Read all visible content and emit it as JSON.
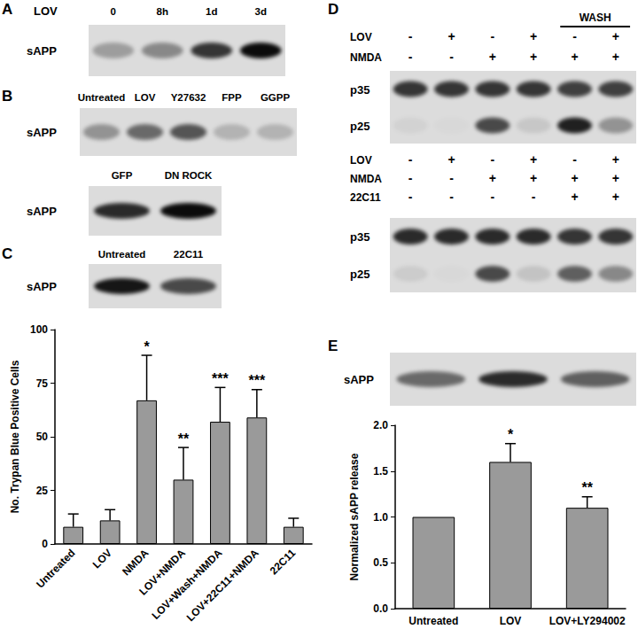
{
  "chart_data": [
    {
      "type": "bar",
      "categories": [
        "Untreated",
        "LOV",
        "NMDA",
        "LOV+NMDA",
        "LOV+Wash+NMDA",
        "LOV+22C11+NMDA",
        "22C11"
      ],
      "values": [
        8,
        11,
        67,
        30,
        57,
        59,
        8
      ],
      "errors": [
        6,
        5,
        21,
        15,
        16,
        13,
        4
      ],
      "annotations": [
        {
          "category": "NMDA",
          "text": "*"
        },
        {
          "category": "LOV+NMDA",
          "text": "**"
        },
        {
          "category": "LOV+Wash+NMDA",
          "text": "***"
        },
        {
          "category": "LOV+22C11+NMDA",
          "text": "***"
        }
      ],
      "y_label": "No. Trypan Blue Positive Cells",
      "color": "#9a9a9a",
      "ylim": [
        0,
        100
      ],
      "yticks": [
        0,
        25,
        50,
        75,
        100
      ],
      "grid": false
    },
    {
      "type": "bar",
      "categories": [
        "Untreated",
        "LOV",
        "LOV+LY294002"
      ],
      "values": [
        1.0,
        1.6,
        1.1
      ],
      "errors": [
        0,
        0.2,
        0.12
      ],
      "annotations": [
        {
          "category": "LOV",
          "text": "*"
        },
        {
          "category": "LOV+LY294002",
          "text": "**"
        }
      ],
      "y_label": "Normalized sAPP release",
      "color": "#9a9a9a",
      "ylim": [
        0,
        2
      ],
      "yticks": [
        {
          "value": 0,
          "label": "0.0"
        },
        {
          "value": 0.5,
          "label": "0.5"
        },
        {
          "value": 1,
          "label": "1.0"
        },
        {
          "value": 1.5,
          "label": "1.5"
        },
        {
          "value": 2,
          "label": "2.0"
        }
      ],
      "grid": false
    }
  ],
  "blots": [
    {
      "panel": "A",
      "header": "LOV",
      "lanes": [
        "0",
        "8h",
        "1d",
        "3d"
      ],
      "rows": [
        {
          "label": "sAPP",
          "intensity": [
            0.3,
            0.4,
            0.8,
            1.0
          ]
        }
      ]
    },
    {
      "panel": "B",
      "lanes": [
        "Untreated",
        "LOV",
        "Y27632",
        "FPP",
        "GGPP"
      ],
      "rows": [
        {
          "label": "sAPP",
          "intensity": [
            0.35,
            0.55,
            0.65,
            0.2,
            0.2
          ]
        }
      ]
    },
    {
      "lanes": [
        "GFP",
        "DN ROCK"
      ],
      "rows": [
        {
          "label": "sAPP",
          "intensity": [
            0.85,
            1.0
          ]
        }
      ]
    },
    {
      "panel": "C",
      "lanes": [
        "Untreated",
        "22C11"
      ],
      "rows": [
        {
          "label": "sAPP",
          "intensity": [
            0.95,
            0.7
          ]
        }
      ]
    },
    {
      "panel": "D",
      "treatments": [
        {
          "label": "LOV",
          "marks": [
            "-",
            "+",
            "-",
            "+",
            "-",
            "+"
          ]
        },
        {
          "label": "NMDA",
          "marks": [
            "-",
            "-",
            "+",
            "+",
            "+",
            "+"
          ]
        }
      ],
      "bracket": {
        "label": "WASH",
        "from": 5,
        "to": 6
      },
      "rows": [
        {
          "label": "p35",
          "intensity": [
            0.8,
            0.8,
            0.8,
            0.8,
            0.75,
            0.75
          ]
        },
        {
          "label": "p25",
          "intensity": [
            0.05,
            0.02,
            0.7,
            0.1,
            0.9,
            0.35
          ]
        }
      ]
    },
    {
      "treatments": [
        {
          "label": "LOV",
          "marks": [
            "-",
            "+",
            "-",
            "+",
            "-",
            "+"
          ]
        },
        {
          "label": "NMDA",
          "marks": [
            "-",
            "-",
            "+",
            "+",
            "+",
            "+"
          ]
        },
        {
          "label": "22C11",
          "marks": [
            "-",
            "-",
            "-",
            "-",
            "+",
            "+"
          ]
        }
      ],
      "rows": [
        {
          "label": "p35",
          "intensity": [
            0.85,
            0.85,
            0.85,
            0.85,
            0.8,
            0.8
          ]
        },
        {
          "label": "p25",
          "intensity": [
            0.08,
            0.02,
            0.7,
            0.12,
            0.6,
            0.4
          ]
        }
      ]
    },
    {
      "panel": "E",
      "rows": [
        {
          "label": "sAPP",
          "intensity": [
            0.55,
            0.85,
            0.6
          ]
        }
      ]
    }
  ]
}
